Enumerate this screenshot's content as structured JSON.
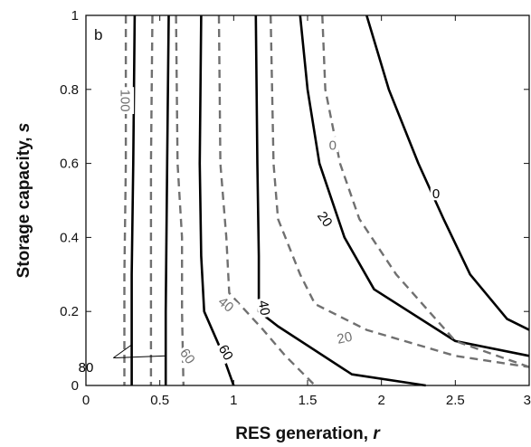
{
  "chart_data": {
    "type": "line",
    "panel_label": "b",
    "xlabel": "RES generation, ",
    "xlabel_var": "r",
    "ylabel": "Storage capacity, ",
    "ylabel_var": "s",
    "xlim": [
      0,
      3
    ],
    "ylim": [
      0,
      1
    ],
    "x_ticks": [
      0,
      0.5,
      1,
      1.5,
      2,
      2.5,
      3
    ],
    "x_tick_labels": [
      "0",
      "0.5",
      "1",
      "1.5",
      "2",
      "2.5",
      "3"
    ],
    "y_ticks": [
      0,
      0.2,
      0.4,
      0.6,
      0.8,
      1
    ],
    "y_tick_labels": [
      "0",
      "0.2",
      "0.4",
      "0.6",
      "0.8",
      "1"
    ],
    "grid": false,
    "colors": {
      "solid": "#000000",
      "dashed": "#707070",
      "axis": "#111111"
    },
    "solid_contours": [
      {
        "level": "100",
        "points": [
          [
            0.33,
            1.0
          ],
          [
            0.32,
            0.6
          ],
          [
            0.31,
            0.3
          ],
          [
            0.31,
            0.0
          ]
        ]
      },
      {
        "level": "80",
        "points": [
          [
            0.56,
            1.0
          ],
          [
            0.55,
            0.6
          ],
          [
            0.54,
            0.2
          ],
          [
            0.54,
            0.0
          ]
        ]
      },
      {
        "level": "60",
        "points": [
          [
            0.78,
            1.0
          ],
          [
            0.77,
            0.6
          ],
          [
            0.78,
            0.35
          ],
          [
            0.8,
            0.2
          ],
          [
            0.91,
            0.1
          ],
          [
            1.0,
            0.0
          ]
        ]
      },
      {
        "level": "40",
        "points": [
          [
            1.15,
            1.0
          ],
          [
            1.16,
            0.6
          ],
          [
            1.17,
            0.35
          ],
          [
            1.17,
            0.2
          ],
          [
            1.3,
            0.16
          ],
          [
            1.8,
            0.03
          ],
          [
            2.3,
            0.0
          ]
        ]
      },
      {
        "level": "20",
        "points": [
          [
            1.45,
            1.0
          ],
          [
            1.5,
            0.8
          ],
          [
            1.58,
            0.6
          ],
          [
            1.75,
            0.4
          ],
          [
            1.95,
            0.26
          ],
          [
            2.5,
            0.12
          ],
          [
            3.0,
            0.08
          ]
        ]
      },
      {
        "level": "0",
        "points": [
          [
            1.9,
            1.0
          ],
          [
            2.05,
            0.8
          ],
          [
            2.25,
            0.6
          ],
          [
            2.42,
            0.45
          ],
          [
            2.6,
            0.3
          ],
          [
            2.85,
            0.18
          ],
          [
            3.0,
            0.15
          ]
        ]
      }
    ],
    "dashed_contours": [
      {
        "level": "100",
        "points": [
          [
            0.27,
            1.0
          ],
          [
            0.27,
            0.6
          ],
          [
            0.26,
            0.3
          ],
          [
            0.26,
            0.0
          ]
        ]
      },
      {
        "level": "80",
        "points": [
          [
            0.45,
            1.0
          ],
          [
            0.44,
            0.6
          ],
          [
            0.44,
            0.3
          ],
          [
            0.44,
            0.0
          ]
        ]
      },
      {
        "level": "60",
        "points": [
          [
            0.61,
            1.0
          ],
          [
            0.62,
            0.6
          ],
          [
            0.65,
            0.4
          ],
          [
            0.65,
            0.2
          ],
          [
            0.66,
            0.0
          ]
        ]
      },
      {
        "level": "40",
        "points": [
          [
            0.9,
            1.0
          ],
          [
            0.91,
            0.6
          ],
          [
            0.95,
            0.4
          ],
          [
            0.97,
            0.25
          ],
          [
            1.2,
            0.15
          ],
          [
            1.35,
            0.08
          ],
          [
            1.55,
            0.0
          ]
        ]
      },
      {
        "level": "20",
        "points": [
          [
            1.25,
            1.0
          ],
          [
            1.27,
            0.6
          ],
          [
            1.3,
            0.45
          ],
          [
            1.45,
            0.3
          ],
          [
            1.55,
            0.22
          ],
          [
            1.9,
            0.15
          ],
          [
            2.5,
            0.08
          ],
          [
            3.0,
            0.05
          ]
        ]
      },
      {
        "level": "0",
        "points": [
          [
            1.6,
            1.0
          ],
          [
            1.62,
            0.8
          ],
          [
            1.72,
            0.6
          ],
          [
            1.85,
            0.45
          ],
          [
            2.1,
            0.3
          ],
          [
            2.5,
            0.12
          ],
          [
            3.0,
            0.05
          ]
        ]
      }
    ],
    "contour_labels": [
      {
        "text": "100",
        "x": 0.27,
        "y": 0.77,
        "rotation": 90,
        "style": "dashed"
      },
      {
        "text": "0",
        "x": 1.67,
        "y": 0.65,
        "rotation": 0,
        "style": "dashed"
      },
      {
        "text": "0",
        "x": 2.37,
        "y": 0.52,
        "rotation": 0,
        "style": "solid"
      },
      {
        "text": "20",
        "x": 1.62,
        "y": 0.45,
        "rotation": 55,
        "style": "solid"
      },
      {
        "text": "40",
        "x": 0.95,
        "y": 0.22,
        "rotation": 40,
        "style": "dashed"
      },
      {
        "text": "40",
        "x": 1.21,
        "y": 0.21,
        "rotation": 80,
        "style": "solid"
      },
      {
        "text": "20",
        "x": 1.75,
        "y": 0.13,
        "rotation": -12,
        "style": "dashed"
      },
      {
        "text": "60",
        "x": 0.69,
        "y": 0.08,
        "rotation": 55,
        "style": "dashed"
      },
      {
        "text": "60",
        "x": 0.95,
        "y": 0.09,
        "rotation": 60,
        "style": "solid"
      },
      {
        "text": "80",
        "x": 0.0,
        "y": 0.05,
        "rotation": 0,
        "style": "solid"
      }
    ],
    "label_80_leaders": {
      "from": [
        0.1,
        0.055
      ],
      "to": [
        [
          0.31,
          0.11
        ],
        [
          0.54,
          0.08
        ]
      ]
    }
  }
}
